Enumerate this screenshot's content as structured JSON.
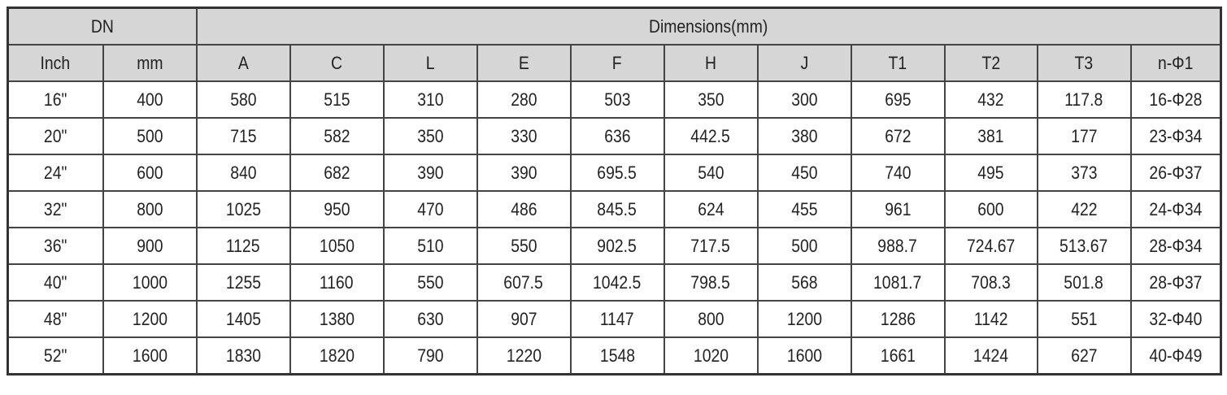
{
  "header": {
    "dn_label": "DN",
    "dimensions_label": "Dimensions(mm)",
    "columns": [
      "Inch",
      "mm",
      "A",
      "C",
      "L",
      "E",
      "F",
      "H",
      "J",
      "T1",
      "T2",
      "T3",
      "n-Φ1"
    ]
  },
  "rows": [
    [
      "16\"",
      "400",
      "580",
      "515",
      "310",
      "280",
      "503",
      "350",
      "300",
      "695",
      "432",
      "117.8",
      "16-Φ28"
    ],
    [
      "20\"",
      "500",
      "715",
      "582",
      "350",
      "330",
      "636",
      "442.5",
      "380",
      "672",
      "381",
      "177",
      "23-Φ34"
    ],
    [
      "24\"",
      "600",
      "840",
      "682",
      "390",
      "390",
      "695.5",
      "540",
      "450",
      "740",
      "495",
      "373",
      "26-Φ37"
    ],
    [
      "32\"",
      "800",
      "1025",
      "950",
      "470",
      "486",
      "845.5",
      "624",
      "455",
      "961",
      "600",
      "422",
      "24-Φ34"
    ],
    [
      "36\"",
      "900",
      "1125",
      "1050",
      "510",
      "550",
      "902.5",
      "717.5",
      "500",
      "988.7",
      "724.67",
      "513.67",
      "28-Φ34"
    ],
    [
      "40\"",
      "1000",
      "1255",
      "1160",
      "550",
      "607.5",
      "1042.5",
      "798.5",
      "568",
      "1081.7",
      "708.3",
      "501.8",
      "28-Φ37"
    ],
    [
      "48\"",
      "1200",
      "1405",
      "1380",
      "630",
      "907",
      "1147",
      "800",
      "1200",
      "1286",
      "1142",
      "551",
      "32-Φ40"
    ],
    [
      "52\"",
      "1600",
      "1830",
      "1820",
      "790",
      "1220",
      "1548",
      "1020",
      "1600",
      "1661",
      "1424",
      "627",
      "40-Φ49"
    ]
  ],
  "colors": {
    "header_bg": "#d6d6d6",
    "border": "#444444"
  }
}
